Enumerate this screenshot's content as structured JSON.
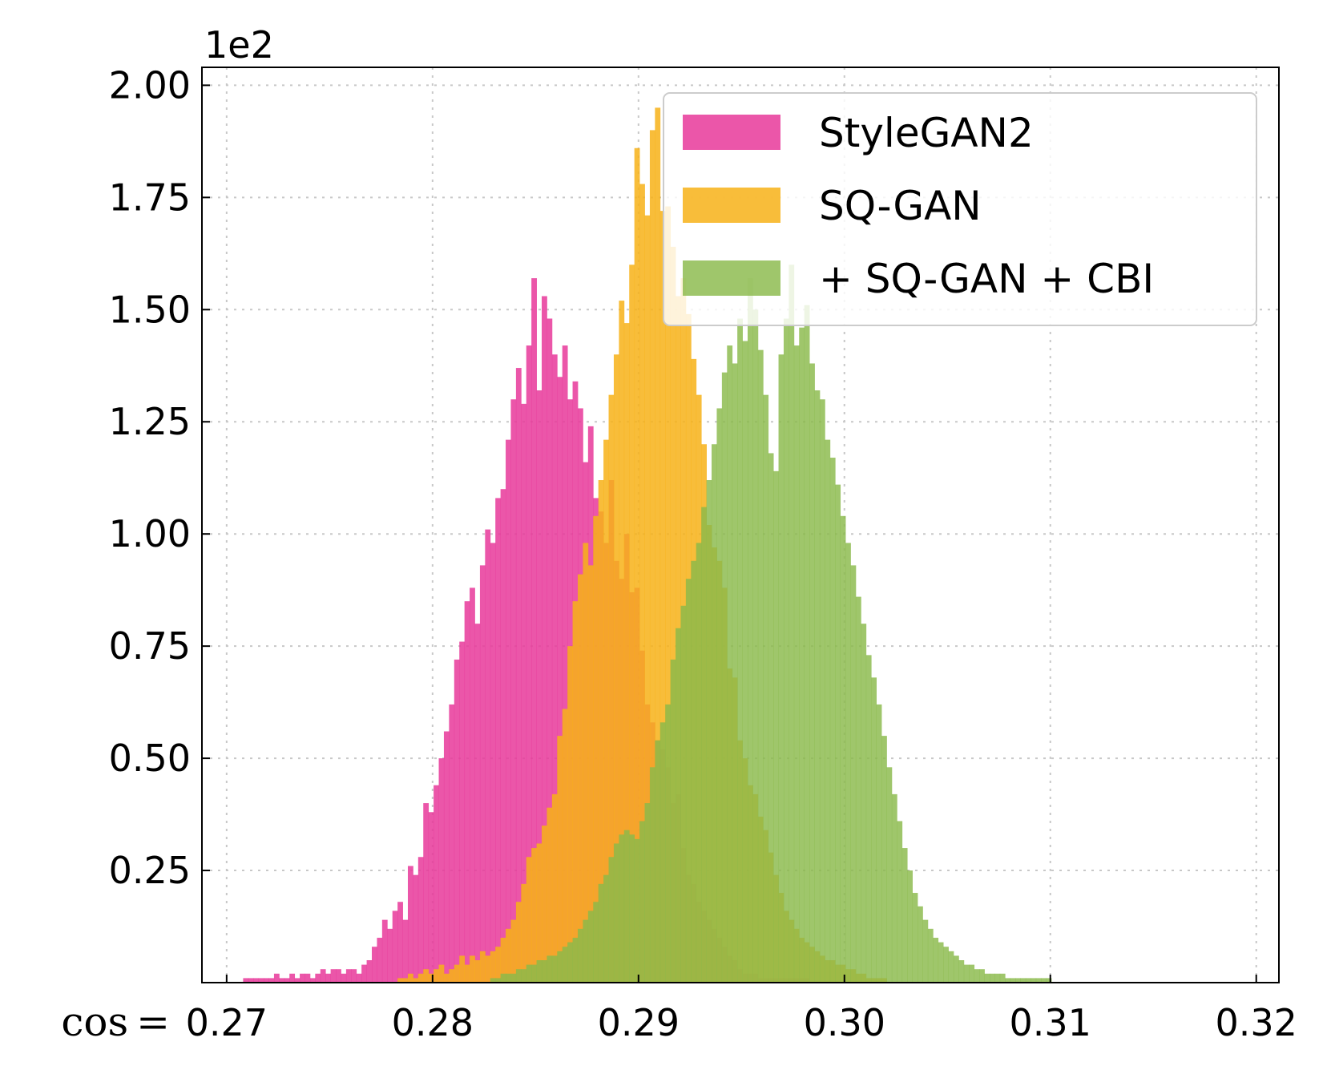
{
  "chart_data": {
    "type": "bar",
    "title": "",
    "xlabel": "",
    "ylabel": "",
    "x_prefix": "cos =",
    "y_offset_label": "1e2",
    "xlim": [
      0.2688,
      0.3211
    ],
    "ylim": [
      0.0,
      2.04
    ],
    "x_ticks": [
      0.27,
      0.28,
      0.29,
      0.3,
      0.31,
      0.32
    ],
    "x_tick_labels": [
      "0.27",
      "0.28",
      "0.29",
      "0.30",
      "0.31",
      "0.32"
    ],
    "y_ticks": [
      0.25,
      0.5,
      0.75,
      1.0,
      1.25,
      1.5,
      1.75,
      2.0
    ],
    "y_tick_labels": [
      "0.25",
      "0.50",
      "0.75",
      "1.00",
      "1.25",
      "1.50",
      "1.75",
      "2.00"
    ],
    "grid": true,
    "legend_position": "top-right",
    "colors": {
      "StyleGAN2": "#e8389a",
      "SQ-GAN": "#f7b218",
      "SQ-GAN+CBI": "#8ab94a"
    },
    "series": [
      {
        "name": "StyleGAN2",
        "bin_start": 0.2708,
        "bin_width": 0.00025,
        "values": [
          0.01,
          0.01,
          0.01,
          0.01,
          0.01,
          0.01,
          0.02,
          0.01,
          0.01,
          0.02,
          0.01,
          0.02,
          0.02,
          0.01,
          0.02,
          0.03,
          0.02,
          0.03,
          0.03,
          0.02,
          0.03,
          0.03,
          0.02,
          0.04,
          0.05,
          0.08,
          0.1,
          0.14,
          0.12,
          0.16,
          0.18,
          0.14,
          0.26,
          0.24,
          0.28,
          0.4,
          0.38,
          0.44,
          0.5,
          0.56,
          0.62,
          0.72,
          0.76,
          0.85,
          0.88,
          0.8,
          0.93,
          1.01,
          0.98,
          1.08,
          1.1,
          1.21,
          1.3,
          1.37,
          1.29,
          1.42,
          1.57,
          1.32,
          1.53,
          1.48,
          1.4,
          1.35,
          1.42,
          1.3,
          1.34,
          1.28,
          1.16,
          1.24,
          1.08,
          1.05,
          0.98,
          1.12,
          0.94,
          0.9,
          1.0,
          0.87,
          0.88,
          0.74,
          0.62,
          0.58,
          0.54,
          0.52,
          0.48,
          0.4,
          0.42,
          0.3,
          0.24,
          0.22,
          0.18,
          0.16,
          0.14,
          0.12,
          0.1,
          0.08,
          0.06,
          0.05,
          0.03,
          0.02,
          0.02,
          0.02,
          0.01,
          0.01,
          0.01,
          0.01,
          0.01,
          0.01,
          0.01,
          0.01,
          0.01,
          0.01
        ]
      },
      {
        "name": "SQ-GAN",
        "bin_start": 0.2783,
        "bin_width": 0.00025,
        "values": [
          0.01,
          0.01,
          0.02,
          0.01,
          0.02,
          0.03,
          0.02,
          0.03,
          0.04,
          0.02,
          0.03,
          0.04,
          0.06,
          0.04,
          0.06,
          0.05,
          0.07,
          0.06,
          0.07,
          0.08,
          0.1,
          0.12,
          0.14,
          0.18,
          0.22,
          0.28,
          0.3,
          0.31,
          0.35,
          0.39,
          0.42,
          0.55,
          0.61,
          0.75,
          0.85,
          0.91,
          0.98,
          0.93,
          1.04,
          1.12,
          1.21,
          1.31,
          1.4,
          1.52,
          1.47,
          1.6,
          1.86,
          1.78,
          1.71,
          1.9,
          1.95,
          1.72,
          1.73,
          1.64,
          1.53,
          1.57,
          1.49,
          1.39,
          1.31,
          1.2,
          1.02,
          0.97,
          0.94,
          0.88,
          0.7,
          0.68,
          0.54,
          0.5,
          0.44,
          0.42,
          0.37,
          0.34,
          0.29,
          0.24,
          0.2,
          0.16,
          0.14,
          0.12,
          0.1,
          0.09,
          0.08,
          0.07,
          0.06,
          0.05,
          0.05,
          0.04,
          0.04,
          0.03,
          0.03,
          0.02,
          0.02,
          0.01,
          0.01,
          0.01,
          0.01
        ]
      },
      {
        "name": "+ SQ-GAN + CBI",
        "bin_start": 0.2828,
        "bin_width": 0.00025,
        "values": [
          0.01,
          0.01,
          0.02,
          0.02,
          0.02,
          0.03,
          0.03,
          0.04,
          0.04,
          0.05,
          0.05,
          0.06,
          0.06,
          0.07,
          0.08,
          0.09,
          0.1,
          0.12,
          0.14,
          0.16,
          0.18,
          0.22,
          0.24,
          0.28,
          0.31,
          0.33,
          0.34,
          0.33,
          0.32,
          0.36,
          0.4,
          0.48,
          0.54,
          0.58,
          0.62,
          0.72,
          0.79,
          0.84,
          0.9,
          0.94,
          0.98,
          1.06,
          1.12,
          1.2,
          1.28,
          1.36,
          1.42,
          1.38,
          1.48,
          1.43,
          1.57,
          1.5,
          1.41,
          1.31,
          1.18,
          1.14,
          1.4,
          1.48,
          1.6,
          1.42,
          1.46,
          1.51,
          1.38,
          1.32,
          1.3,
          1.21,
          1.17,
          1.11,
          1.04,
          0.98,
          0.93,
          0.86,
          0.8,
          0.73,
          0.68,
          0.62,
          0.55,
          0.48,
          0.42,
          0.36,
          0.3,
          0.25,
          0.2,
          0.17,
          0.14,
          0.12,
          0.1,
          0.09,
          0.08,
          0.07,
          0.06,
          0.05,
          0.04,
          0.04,
          0.03,
          0.03,
          0.02,
          0.02,
          0.02,
          0.02,
          0.01,
          0.01,
          0.01,
          0.01,
          0.01,
          0.01,
          0.01,
          0.01,
          0.01
        ]
      }
    ]
  }
}
